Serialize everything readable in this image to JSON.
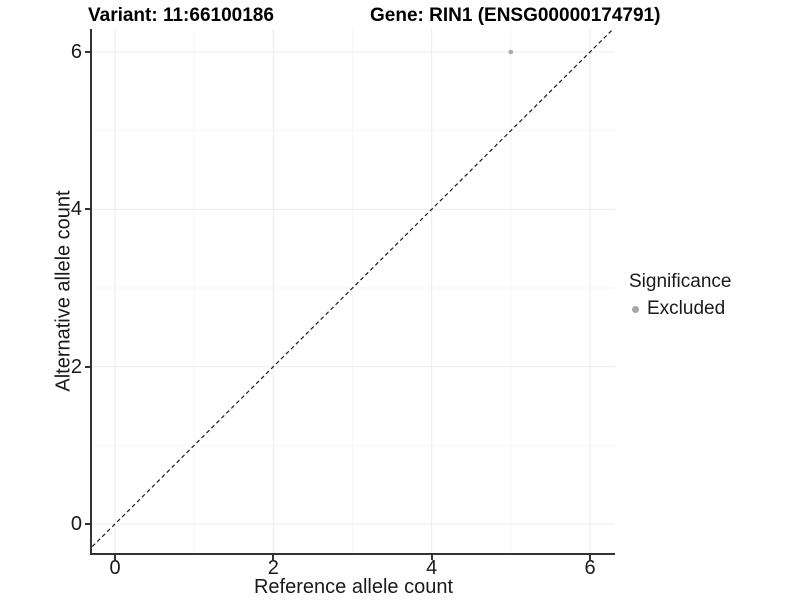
{
  "chart_data": {
    "type": "scatter",
    "title_left": "Variant: 11:66100186",
    "title_right": "Gene: RIN1 (ENSG00000174791)",
    "xlabel": "Reference allele count",
    "ylabel": "Alternative allele count",
    "xlim": [
      -0.3,
      6.3
    ],
    "ylim": [
      -0.3,
      6.3
    ],
    "x_ticks": [
      0,
      2,
      4,
      6
    ],
    "y_ticks": [
      0,
      2,
      4,
      6
    ],
    "x_minor_ticks": [
      1,
      3,
      5
    ],
    "y_minor_ticks": [
      1,
      3,
      5
    ],
    "grid": true,
    "legend_position": "right",
    "series": [
      {
        "name": "Excluded",
        "color": "#aaaaaa",
        "points": [
          {
            "x": 5,
            "y": 6
          }
        ]
      }
    ],
    "reference_line": {
      "kind": "identity y=x",
      "style": "dashed",
      "color": "#1a1a1a"
    },
    "legend": {
      "title": "Significance",
      "items": [
        {
          "label": "Excluded",
          "color": "#a6a6a6"
        }
      ]
    },
    "style": {
      "major_grid": "#ebebeb",
      "minor_grid": "#f6f6f6",
      "axis": "#333333",
      "point": "#aaaaaa"
    }
  }
}
